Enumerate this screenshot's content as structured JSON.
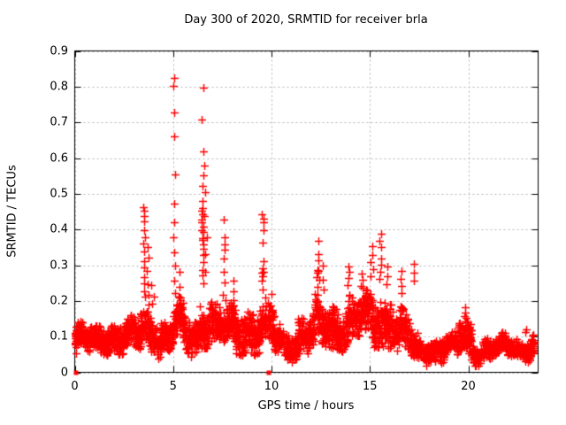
{
  "chart_data": {
    "type": "scatter",
    "title": "Day 300 of 2020, SRMTID for receiver brla",
    "xlabel": "GPS time / hours",
    "ylabel": "SRMTID / TECUs",
    "xlim": [
      0,
      23.55
    ],
    "ylim": [
      0,
      0.9
    ],
    "xticks": {
      "values": [
        0,
        5,
        10,
        15,
        20
      ],
      "labels": [
        "0",
        "5",
        "10",
        "15",
        "20"
      ]
    },
    "yticks": {
      "values": [
        0,
        0.1,
        0.2,
        0.3,
        0.4,
        0.5,
        0.6,
        0.7,
        0.8,
        0.9
      ],
      "labels": [
        "0",
        "0.1",
        "0.2",
        "0.3",
        "0.4",
        "0.5",
        "0.6",
        "0.7",
        "0.8",
        "0.9"
      ]
    },
    "grid": true,
    "legend": "none",
    "marker": "plus",
    "marker_color": "#ff0000",
    "grid_color": "#b4b4b4",
    "border_color": "#000000",
    "background_color": "#ffffff",
    "seed": 20300,
    "zero_square_points": [
      [
        0.07,
        0.0
      ],
      [
        9.86,
        0.0
      ]
    ],
    "baseline_band_format": "[x_start_hours, x_end_hours, y_low_TECUs, y_high_TECUs, n_points]",
    "baseline_bands": [
      [
        0.0,
        0.45,
        0.05,
        0.14,
        70
      ],
      [
        0.45,
        1.2,
        0.05,
        0.13,
        110
      ],
      [
        1.2,
        2.1,
        0.06,
        0.15,
        130
      ],
      [
        2.1,
        3.3,
        0.05,
        0.15,
        170
      ],
      [
        3.3,
        4.15,
        0.07,
        0.2,
        120
      ],
      [
        4.15,
        5.0,
        0.05,
        0.16,
        120
      ],
      [
        5.0,
        5.5,
        0.07,
        0.2,
        70
      ],
      [
        5.5,
        6.3,
        0.05,
        0.17,
        110
      ],
      [
        6.3,
        7.05,
        0.08,
        0.22,
        100
      ],
      [
        7.05,
        8.0,
        0.06,
        0.19,
        130
      ],
      [
        8.0,
        9.3,
        0.06,
        0.21,
        180
      ],
      [
        9.3,
        10.15,
        0.05,
        0.19,
        110
      ],
      [
        10.15,
        11.3,
        0.04,
        0.14,
        150
      ],
      [
        11.3,
        12.2,
        0.05,
        0.17,
        120
      ],
      [
        12.2,
        13.1,
        0.06,
        0.2,
        120
      ],
      [
        13.1,
        14.5,
        0.07,
        0.22,
        190
      ],
      [
        14.5,
        16.2,
        0.08,
        0.24,
        240
      ],
      [
        16.2,
        17.1,
        0.05,
        0.17,
        110
      ],
      [
        17.1,
        19.5,
        0.03,
        0.11,
        300
      ],
      [
        19.5,
        20.15,
        0.05,
        0.16,
        90
      ],
      [
        20.15,
        21.6,
        0.03,
        0.1,
        170
      ],
      [
        21.6,
        23.35,
        0.04,
        0.11,
        220
      ]
    ],
    "spike_columns": [
      {
        "x": 0.05,
        "values": [
          0.05,
          0.07,
          0.08,
          0.09,
          0.1,
          0.11,
          0.12,
          0.13
        ]
      },
      {
        "x": 3.55,
        "values": [
          0.46,
          0.45,
          0.44,
          0.42,
          0.4,
          0.38,
          0.36,
          0.34,
          0.31,
          0.29,
          0.27,
          0.25,
          0.23,
          0.21
        ]
      },
      {
        "x": 3.7,
        "values": [
          0.35,
          0.32,
          0.28,
          0.25,
          0.22,
          0.19
        ]
      },
      {
        "x": 3.95,
        "values": [
          0.24,
          0.21,
          0.19
        ]
      },
      {
        "x": 5.08,
        "values": [
          0.82,
          0.8,
          0.73,
          0.66,
          0.55,
          0.47,
          0.42,
          0.38,
          0.34,
          0.3,
          0.26,
          0.22,
          0.17,
          0.13
        ]
      },
      {
        "x": 5.3,
        "values": [
          0.28,
          0.24,
          0.21
        ]
      },
      {
        "x": 6.5,
        "values": [
          0.8,
          0.71,
          0.62,
          0.55,
          0.52,
          0.48,
          0.46,
          0.45,
          0.44,
          0.43,
          0.42,
          0.41,
          0.4,
          0.39,
          0.38,
          0.37,
          0.36,
          0.35,
          0.33,
          0.31,
          0.29,
          0.27,
          0.25
        ]
      },
      {
        "x": 6.65,
        "values": [
          0.58,
          0.5,
          0.44,
          0.38,
          0.33,
          0.28
        ]
      },
      {
        "x": 7.6,
        "values": [
          0.43,
          0.38,
          0.36,
          0.34,
          0.32,
          0.28,
          0.25,
          0.22,
          0.2
        ]
      },
      {
        "x": 8.05,
        "values": [
          0.26,
          0.23,
          0.2
        ]
      },
      {
        "x": 9.55,
        "values": [
          0.44,
          0.43,
          0.42,
          0.4,
          0.36,
          0.31,
          0.29,
          0.28,
          0.28,
          0.27,
          0.26,
          0.23
        ]
      },
      {
        "x": 10.0,
        "values": [
          0.22,
          0.19
        ]
      },
      {
        "x": 12.35,
        "values": [
          0.37,
          0.33,
          0.31,
          0.29,
          0.28,
          0.28,
          0.27,
          0.26,
          0.24,
          0.22
        ]
      },
      {
        "x": 12.6,
        "values": [
          0.3,
          0.26,
          0.23
        ]
      },
      {
        "x": 13.9,
        "values": [
          0.3,
          0.28,
          0.26,
          0.24
        ]
      },
      {
        "x": 14.6,
        "values": [
          0.28,
          0.26,
          0.24
        ]
      },
      {
        "x": 15.1,
        "values": [
          0.35,
          0.33,
          0.31,
          0.29,
          0.27
        ]
      },
      {
        "x": 15.55,
        "values": [
          0.39,
          0.37,
          0.35,
          0.32,
          0.3,
          0.28,
          0.26
        ]
      },
      {
        "x": 15.85,
        "values": [
          0.3,
          0.27,
          0.25
        ]
      },
      {
        "x": 16.6,
        "values": [
          0.28,
          0.26,
          0.24,
          0.22
        ]
      },
      {
        "x": 17.25,
        "values": [
          0.3,
          0.28,
          0.26
        ]
      },
      {
        "x": 19.85,
        "values": [
          0.18,
          0.17,
          0.16,
          0.15,
          0.14
        ]
      },
      {
        "x": 22.9,
        "values": [
          0.12,
          0.11
        ]
      }
    ]
  }
}
